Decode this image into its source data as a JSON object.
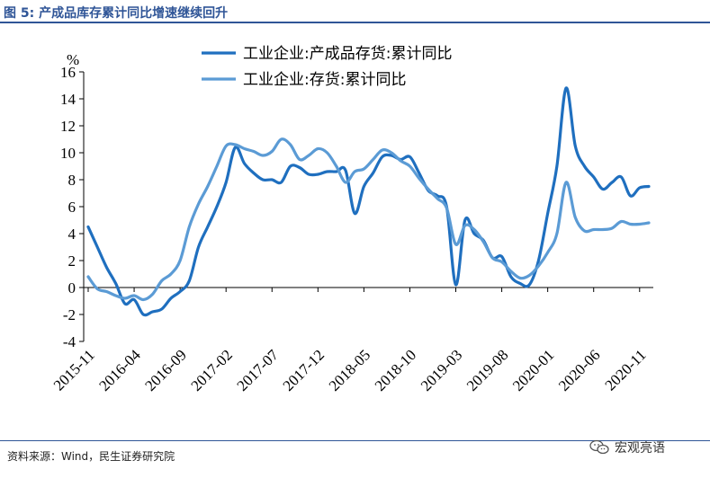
{
  "header": {
    "title": "图 5: 产成品库存累计同比增速继续回升"
  },
  "footer": {
    "source": "资料来源：Wind，民生证券研究院",
    "watermark": "宏观亮语"
  },
  "colors": {
    "series1": "#1f6fbf",
    "series2": "#5b9bd5",
    "title": "#2f5597"
  },
  "chart_data": {
    "type": "line",
    "ylabel": "%",
    "ylim": [
      -4,
      16
    ],
    "yticks": [
      -4,
      -2,
      0,
      2,
      4,
      6,
      8,
      10,
      12,
      14,
      16
    ],
    "x_tick_labels": [
      "2015-11",
      "2016-04",
      "2016-09",
      "2017-02",
      "2017-07",
      "2017-12",
      "2018-05",
      "2018-10",
      "2019-03",
      "2019-08",
      "2020-01",
      "2020-06",
      "2020-11"
    ],
    "x": [
      "2015-11",
      "2015-12",
      "2016-01",
      "2016-02",
      "2016-03",
      "2016-04",
      "2016-05",
      "2016-06",
      "2016-07",
      "2016-08",
      "2016-09",
      "2016-10",
      "2016-11",
      "2016-12",
      "2017-01",
      "2017-02",
      "2017-03",
      "2017-04",
      "2017-05",
      "2017-06",
      "2017-07",
      "2017-08",
      "2017-09",
      "2017-10",
      "2017-11",
      "2017-12",
      "2018-01",
      "2018-02",
      "2018-03",
      "2018-04",
      "2018-05",
      "2018-06",
      "2018-07",
      "2018-08",
      "2018-09",
      "2018-10",
      "2018-11",
      "2018-12",
      "2019-01",
      "2019-02",
      "2019-03",
      "2019-04",
      "2019-05",
      "2019-06",
      "2019-07",
      "2019-08",
      "2019-09",
      "2019-10",
      "2019-11",
      "2019-12",
      "2020-01",
      "2020-02",
      "2020-03",
      "2020-04",
      "2020-05",
      "2020-06",
      "2020-07",
      "2020-08",
      "2020-09",
      "2020-10",
      "2020-11",
      "2020-12"
    ],
    "legend_position": "top",
    "series": [
      {
        "name": "工业企业:产成品存货:累计同比",
        "values": [
          4.5,
          3.0,
          1.5,
          0.3,
          -1.2,
          -0.9,
          -2.0,
          -1.8,
          -1.6,
          -0.8,
          -0.3,
          0.5,
          3.0,
          4.5,
          6.0,
          7.8,
          10.4,
          9.2,
          8.5,
          8.0,
          8.0,
          7.8,
          9.0,
          8.9,
          8.4,
          8.4,
          8.6,
          8.6,
          8.7,
          5.5,
          7.5,
          8.5,
          9.7,
          9.8,
          9.5,
          9.7,
          8.5,
          7.2,
          6.8,
          6.0,
          0.2,
          5.0,
          4.0,
          3.5,
          2.2,
          2.3,
          0.8,
          0.3,
          0.2,
          2.0,
          5.5,
          9.0,
          14.8,
          10.5,
          9.0,
          8.2,
          7.3,
          7.8,
          8.2,
          6.8,
          7.4,
          7.5
        ]
      },
      {
        "name": "工业企业:存货:累计同比",
        "values": [
          0.8,
          -0.1,
          -0.3,
          -0.6,
          -0.8,
          -0.6,
          -0.9,
          -0.5,
          0.5,
          1.0,
          2.0,
          4.5,
          6.2,
          7.5,
          9.0,
          10.5,
          10.6,
          10.3,
          10.1,
          9.8,
          10.1,
          11.0,
          10.6,
          9.5,
          9.8,
          10.3,
          10.0,
          9.0,
          7.8,
          8.6,
          8.8,
          9.5,
          10.2,
          10.0,
          9.4,
          9.0,
          8.1,
          7.3,
          6.6,
          5.9,
          3.2,
          4.6,
          4.3,
          3.4,
          2.2,
          1.9,
          1.2,
          0.7,
          0.9,
          1.6,
          2.6,
          4.0,
          7.8,
          5.2,
          4.2,
          4.3,
          4.3,
          4.4,
          4.9,
          4.7,
          4.7,
          4.8
        ]
      }
    ]
  }
}
